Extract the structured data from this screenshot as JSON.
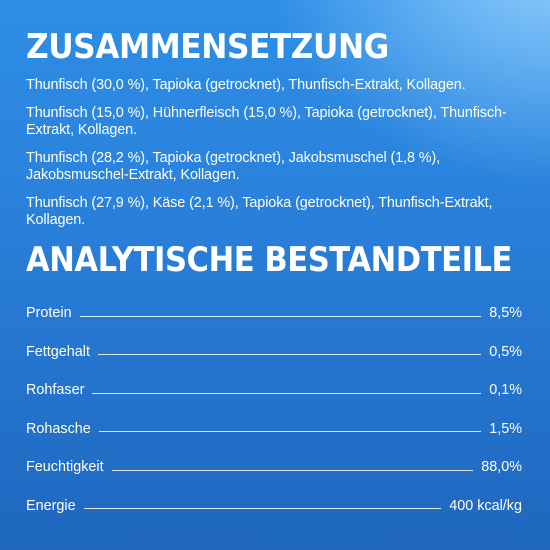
{
  "composition": {
    "heading": "ZUSAMMENSETZUNG",
    "paragraphs": [
      "Thunfisch (30,0 %), Tapioka (getrocknet), Thunfisch-Extrakt, Kollagen.",
      "Thunfisch (15,0 %), Hühnerfleisch (15,0 %), Tapioka (getrocknet), Thunfisch-Extrakt, Kollagen.",
      "Thunfisch (28,2 %), Tapioka (getrocknet), Jakobsmuschel (1,8 %), Jakobsmuschel-Extrakt, Kollagen.",
      "Thunfisch (27,9 %), Käse (2,1 %), Tapioka (getrocknet), Thunfisch-Extrakt, Kollagen."
    ]
  },
  "analysis": {
    "heading": "ANALYTISCHE BESTANDTEILE",
    "rows": [
      {
        "label": "Protein",
        "value": "8,5%"
      },
      {
        "label": "Fettgehalt",
        "value": "0,5%"
      },
      {
        "label": "Rohfaser",
        "value": "0,1%"
      },
      {
        "label": "Rohasche",
        "value": "1,5%"
      },
      {
        "label": "Feuchtigkeit",
        "value": "88,0%"
      },
      {
        "label": "Energie",
        "value": "400 kcal/kg"
      }
    ]
  },
  "colors": {
    "background_top": "#2e8ee6",
    "background_bottom": "#1f67bf",
    "highlight": "#96d2ff",
    "text": "#ffffff"
  }
}
